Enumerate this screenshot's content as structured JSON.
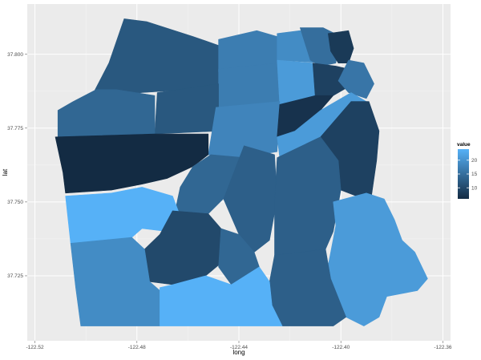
{
  "chart_data": {
    "type": "choropleth",
    "xlabel": "long",
    "ylabel": "lat",
    "x_ticks": [
      "-122.52",
      "-122.48",
      "-122.44",
      "-122.40",
      "-122.36"
    ],
    "y_ticks": [
      "37.725",
      "37.750",
      "37.775",
      "37.800"
    ],
    "x_tick_values": [
      -122.52,
      -122.48,
      -122.44,
      -122.4,
      -122.36
    ],
    "y_tick_values": [
      37.725,
      37.75,
      37.775,
      37.8
    ],
    "xlim": [
      -122.523,
      -122.357
    ],
    "ylim": [
      37.703,
      37.817
    ],
    "legend": {
      "title": "value",
      "labels": [
        "20",
        "15",
        "10"
      ],
      "label_values": [
        20,
        15,
        10
      ],
      "min": 6,
      "max": 24,
      "color_low": "#132b43",
      "color_high": "#56b1f7",
      "placement": "right"
    },
    "panel_background": "#ebebeb",
    "grid": true,
    "regions": [
      {
        "id": "presidio",
        "value": 12,
        "polygon": [
          [
            -122.485,
            37.812
          ],
          [
            -122.476,
            37.811
          ],
          [
            -122.458,
            37.806
          ],
          [
            -122.448,
            37.803
          ],
          [
            -122.448,
            37.79
          ],
          [
            -122.46,
            37.788
          ],
          [
            -122.478,
            37.787
          ],
          [
            -122.49,
            37.786
          ],
          [
            -122.497,
            37.787
          ],
          [
            -122.491,
            37.797
          ]
        ]
      },
      {
        "id": "marina-west",
        "value": 17,
        "polygon": [
          [
            -122.448,
            37.805
          ],
          [
            -122.433,
            37.808
          ],
          [
            -122.425,
            37.806
          ],
          [
            -122.425,
            37.795
          ],
          [
            -122.448,
            37.794
          ]
        ]
      },
      {
        "id": "marina-east",
        "value": 19,
        "polygon": [
          [
            -122.425,
            37.807
          ],
          [
            -122.416,
            37.808
          ],
          [
            -122.408,
            37.806
          ],
          [
            -122.405,
            37.803
          ],
          [
            -122.406,
            37.797
          ],
          [
            -122.425,
            37.798
          ]
        ]
      },
      {
        "id": "north-beach",
        "value": 15,
        "polygon": [
          [
            -122.416,
            37.809
          ],
          [
            -122.407,
            37.809
          ],
          [
            -122.4,
            37.806
          ],
          [
            -122.402,
            37.797
          ],
          [
            -122.408,
            37.796
          ],
          [
            -122.412,
            37.798
          ]
        ]
      },
      {
        "id": "telegraph-hill",
        "value": 8,
        "polygon": [
          [
            -122.405,
            37.807
          ],
          [
            -122.397,
            37.808
          ],
          [
            -122.395,
            37.802
          ],
          [
            -122.397,
            37.797
          ],
          [
            -122.401,
            37.797
          ],
          [
            -122.404,
            37.801
          ]
        ]
      },
      {
        "id": "pacific-heights",
        "value": 17,
        "polygon": [
          [
            -122.448,
            37.795
          ],
          [
            -122.425,
            37.797
          ],
          [
            -122.424,
            37.782
          ],
          [
            -122.448,
            37.782
          ]
        ]
      },
      {
        "id": "russian-hill",
        "value": 21,
        "polygon": [
          [
            -122.425,
            37.798
          ],
          [
            -122.411,
            37.797
          ],
          [
            -122.41,
            37.785
          ],
          [
            -122.424,
            37.783
          ]
        ]
      },
      {
        "id": "chinatown",
        "value": 9,
        "polygon": [
          [
            -122.411,
            37.797
          ],
          [
            -122.402,
            37.796
          ],
          [
            -122.397,
            37.795
          ],
          [
            -122.397,
            37.789
          ],
          [
            -122.403,
            37.786
          ],
          [
            -122.41,
            37.785
          ]
        ]
      },
      {
        "id": "financial-district",
        "value": 16,
        "polygon": [
          [
            -122.397,
            37.798
          ],
          [
            -122.391,
            37.797
          ],
          [
            -122.387,
            37.79
          ],
          [
            -122.39,
            37.785
          ],
          [
            -122.397,
            37.787
          ],
          [
            -122.401,
            37.791
          ]
        ]
      },
      {
        "id": "lone-mountain",
        "value": 12,
        "polygon": [
          [
            -122.472,
            37.787
          ],
          [
            -122.448,
            37.79
          ],
          [
            -122.448,
            37.774
          ],
          [
            -122.473,
            37.773
          ]
        ]
      },
      {
        "id": "richmond",
        "value": 14,
        "polygon": [
          [
            -122.511,
            37.781
          ],
          [
            -122.505,
            37.784
          ],
          [
            -122.496,
            37.788
          ],
          [
            -122.488,
            37.788
          ],
          [
            -122.473,
            37.786
          ],
          [
            -122.473,
            37.773
          ],
          [
            -122.511,
            37.772
          ]
        ]
      },
      {
        "id": "western-addition",
        "value": 18,
        "polygon": [
          [
            -122.449,
            37.782
          ],
          [
            -122.424,
            37.784
          ],
          [
            -122.425,
            37.767
          ],
          [
            -122.439,
            37.765
          ],
          [
            -122.452,
            37.766
          ]
        ]
      },
      {
        "id": "tenderloin",
        "value": 7,
        "polygon": [
          [
            -122.424,
            37.783
          ],
          [
            -122.41,
            37.786
          ],
          [
            -122.403,
            37.786
          ],
          [
            -122.408,
            37.781
          ],
          [
            -122.418,
            37.774
          ],
          [
            -122.425,
            37.772
          ]
        ]
      },
      {
        "id": "south-of-market",
        "value": 21,
        "polygon": [
          [
            -122.425,
            37.772
          ],
          [
            -122.418,
            37.774
          ],
          [
            -122.408,
            37.781
          ],
          [
            -122.396,
            37.787
          ],
          [
            -122.39,
            37.784
          ],
          [
            -122.396,
            37.778
          ],
          [
            -122.408,
            37.772
          ],
          [
            -122.424,
            37.765
          ]
        ]
      },
      {
        "id": "mission-bay",
        "value": 9,
        "polygon": [
          [
            -122.396,
            37.784
          ],
          [
            -122.389,
            37.784
          ],
          [
            -122.385,
            37.774
          ],
          [
            -122.386,
            37.764
          ],
          [
            -122.388,
            37.752
          ],
          [
            -122.394,
            37.752
          ],
          [
            -122.4,
            37.754
          ],
          [
            -122.401,
            37.764
          ],
          [
            -122.408,
            37.772
          ]
        ]
      },
      {
        "id": "sunset-north",
        "value": 6,
        "polygon": [
          [
            -122.512,
            37.772
          ],
          [
            -122.473,
            37.773
          ],
          [
            -122.452,
            37.773
          ],
          [
            -122.452,
            37.766
          ],
          [
            -122.458,
            37.762
          ],
          [
            -122.468,
            37.758
          ],
          [
            -122.478,
            37.756
          ],
          [
            -122.49,
            37.754
          ],
          [
            -122.508,
            37.753
          ],
          [
            -122.509,
            37.76
          ]
        ]
      },
      {
        "id": "haight",
        "value": 14,
        "polygon": [
          [
            -122.451,
            37.766
          ],
          [
            -122.438,
            37.765
          ],
          [
            -122.438,
            37.76
          ],
          [
            -122.445,
            37.752
          ],
          [
            -122.452,
            37.746
          ],
          [
            -122.46,
            37.742
          ],
          [
            -122.465,
            37.747
          ],
          [
            -122.463,
            37.755
          ],
          [
            -122.458,
            37.762
          ]
        ]
      },
      {
        "id": "castro",
        "value": 13,
        "polygon": [
          [
            -122.438,
            37.769
          ],
          [
            -122.426,
            37.766
          ],
          [
            -122.425,
            37.751
          ],
          [
            -122.428,
            37.737
          ],
          [
            -122.434,
            37.733
          ],
          [
            -122.44,
            37.739
          ],
          [
            -122.446,
            37.751
          ]
        ]
      },
      {
        "id": "mission",
        "value": 13,
        "polygon": [
          [
            -122.425,
            37.765
          ],
          [
            -122.408,
            37.772
          ],
          [
            -122.401,
            37.764
          ],
          [
            -122.4,
            37.754
          ],
          [
            -122.403,
            37.74
          ],
          [
            -122.406,
            37.734
          ],
          [
            -122.414,
            37.731
          ],
          [
            -122.426,
            37.732
          ],
          [
            -122.426,
            37.75
          ]
        ]
      },
      {
        "id": "sunset-south",
        "value": 24,
        "polygon": [
          [
            -122.508,
            37.752
          ],
          [
            -122.49,
            37.753
          ],
          [
            -122.478,
            37.755
          ],
          [
            -122.466,
            37.752
          ],
          [
            -122.462,
            37.743
          ],
          [
            -122.468,
            37.74
          ],
          [
            -122.478,
            37.741
          ],
          [
            -122.482,
            37.738
          ],
          [
            -122.506,
            37.736
          ]
        ]
      },
      {
        "id": "twin-peaks",
        "value": 10,
        "polygon": [
          [
            -122.466,
            37.747
          ],
          [
            -122.452,
            37.746
          ],
          [
            -122.447,
            37.741
          ],
          [
            -122.446,
            37.73
          ],
          [
            -122.453,
            37.725
          ],
          [
            -122.466,
            37.722
          ],
          [
            -122.475,
            37.723
          ],
          [
            -122.477,
            37.734
          ],
          [
            -122.471,
            37.739
          ]
        ]
      },
      {
        "id": "glen-park",
        "value": 14,
        "polygon": [
          [
            -122.447,
            37.741
          ],
          [
            -122.44,
            37.739
          ],
          [
            -122.434,
            37.733
          ],
          [
            -122.432,
            37.728
          ],
          [
            -122.443,
            37.722
          ],
          [
            -122.448,
            37.728
          ]
        ]
      },
      {
        "id": "bayview",
        "value": 21,
        "polygon": [
          [
            -122.403,
            37.75
          ],
          [
            -122.39,
            37.753
          ],
          [
            -122.383,
            37.751
          ],
          [
            -122.379,
            37.744
          ],
          [
            -122.376,
            37.737
          ],
          [
            -122.371,
            37.733
          ],
          [
            -122.366,
            37.724
          ],
          [
            -122.37,
            37.72
          ],
          [
            -122.382,
            37.718
          ],
          [
            -122.385,
            37.711
          ],
          [
            -122.391,
            37.708
          ],
          [
            -122.398,
            37.711
          ],
          [
            -122.406,
            37.724
          ],
          [
            -122.404,
            37.733
          ],
          [
            -122.402,
            37.742
          ]
        ]
      },
      {
        "id": "parkside",
        "value": 19,
        "polygon": [
          [
            -122.506,
            37.736
          ],
          [
            -122.482,
            37.738
          ],
          [
            -122.477,
            37.734
          ],
          [
            -122.475,
            37.723
          ],
          [
            -122.471,
            37.72
          ],
          [
            -122.471,
            37.708
          ],
          [
            -122.502,
            37.708
          ],
          [
            -122.504,
            37.721
          ]
        ]
      },
      {
        "id": "excelsior",
        "value": 13,
        "polygon": [
          [
            -122.426,
            37.732
          ],
          [
            -122.406,
            37.734
          ],
          [
            -122.404,
            37.724
          ],
          [
            -122.398,
            37.711
          ],
          [
            -122.403,
            37.708
          ],
          [
            -122.423,
            37.708
          ],
          [
            -122.427,
            37.715
          ],
          [
            -122.428,
            37.723
          ]
        ]
      },
      {
        "id": "ocean-view",
        "value": 24,
        "polygon": [
          [
            -122.471,
            37.721
          ],
          [
            -122.466,
            37.722
          ],
          [
            -122.453,
            37.725
          ],
          [
            -122.443,
            37.722
          ],
          [
            -122.432,
            37.728
          ],
          [
            -122.428,
            37.723
          ],
          [
            -122.427,
            37.715
          ],
          [
            -122.423,
            37.708
          ],
          [
            -122.456,
            37.708
          ],
          [
            -122.471,
            37.708
          ]
        ]
      }
    ]
  }
}
